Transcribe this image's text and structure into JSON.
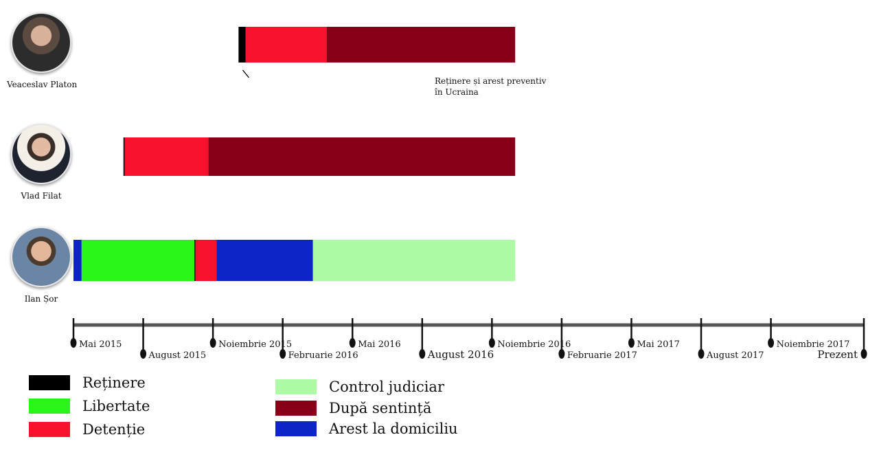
{
  "colors": {
    "retinere": "#000000",
    "libertate": "#2af51b",
    "detentie": "#f8112d",
    "control_judiciar": "#adfba4",
    "dupa_sentinta": "#880018",
    "arest_domiciliu": "#0d24c8",
    "axis": "#555555"
  },
  "people": [
    {
      "name": "Veaceslav Platon",
      "avatar_icon": "portrait-icon",
      "segments": [
        {
          "status": "retinere",
          "start": 7.1,
          "end": 7.4
        },
        {
          "status": "detentie",
          "start": 7.4,
          "end": 10.9
        },
        {
          "status": "dupa_sentinta",
          "start": 10.9,
          "end": 19.0
        }
      ]
    },
    {
      "name": "Vlad Filat",
      "segments": [
        {
          "status": "retinere",
          "start": 2.15,
          "end": 2.2
        },
        {
          "status": "detentie",
          "start": 2.2,
          "end": 5.8
        },
        {
          "status": "dupa_sentinta",
          "start": 5.8,
          "end": 19.0
        }
      ]
    },
    {
      "name": "Ilan Șor",
      "segments": [
        {
          "status": "arest_domiciliu",
          "start": 0.0,
          "end": 0.35
        },
        {
          "status": "libertate",
          "start": 0.35,
          "end": 5.2
        },
        {
          "status": "retinere",
          "start": 5.2,
          "end": 5.25
        },
        {
          "status": "detentie",
          "start": 5.25,
          "end": 6.15
        },
        {
          "status": "arest_domiciliu",
          "start": 6.15,
          "end": 10.3
        },
        {
          "status": "control_judiciar",
          "start": 10.3,
          "end": 19.0
        }
      ]
    }
  ],
  "annotation": {
    "line1": "Reținere și arest preventiv",
    "line2": "în Ucraina"
  },
  "axis": {
    "ticks": [
      {
        "label": "Mai 2015",
        "month": 0
      },
      {
        "label": "August 2015",
        "month": 3
      },
      {
        "label": "Noiembrie 2015",
        "month": 6
      },
      {
        "label": "Februarie 2016",
        "month": 9
      },
      {
        "label": "Mai 2016",
        "month": 12
      },
      {
        "label": "August 2016",
        "month": 15
      },
      {
        "label": "Noiembrie 2016",
        "month": 18
      },
      {
        "label": "Februarie 2017",
        "month": 21
      },
      {
        "label": "Mai 2017",
        "month": 24
      },
      {
        "label": "August 2017",
        "month": 27
      },
      {
        "label": "Noiembrie 2017",
        "month": 30
      },
      {
        "label": "Prezent",
        "month": 34
      }
    ]
  },
  "legend": [
    {
      "status": "retinere",
      "label": "Reținere"
    },
    {
      "status": "libertate",
      "label": "Libertate"
    },
    {
      "status": "detentie",
      "label": "Detenție"
    },
    {
      "status": "control_judiciar",
      "label": "Control judiciar"
    },
    {
      "status": "dupa_sentinta",
      "label": "După sentință"
    },
    {
      "status": "arest_domiciliu",
      "label": "Arest la domiciliu"
    }
  ]
}
